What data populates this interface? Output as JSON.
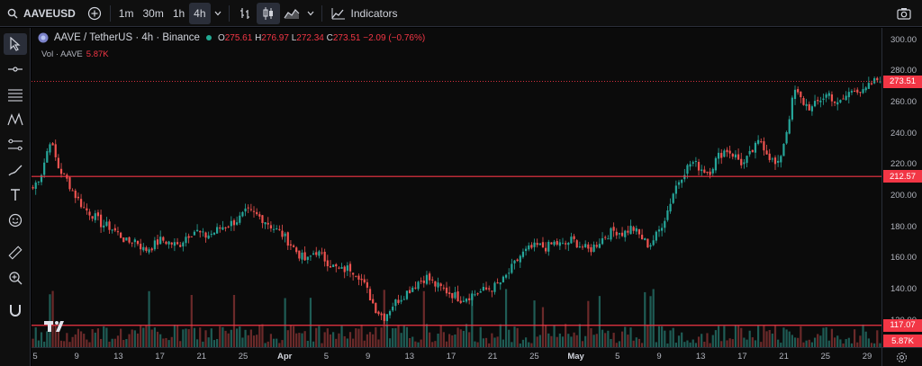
{
  "toolbar": {
    "symbol": "AAVEUSD",
    "timeframes": [
      "1m",
      "30m",
      "1h",
      "4h"
    ],
    "active_timeframe": "4h",
    "indicators_label": "Indicators"
  },
  "legend": {
    "title": "AAVE / TetherUS · 4h · Binance",
    "open_label": "O",
    "open": "275.61",
    "high_label": "H",
    "high": "276.97",
    "low_label": "L",
    "low": "272.34",
    "close_label": "C",
    "close": "273.51",
    "change": "−2.09 (−0.76%)",
    "vol_label": "Vol · AAVE",
    "vol_value": "5.87K"
  },
  "price_axis": {
    "ticks": [
      "300.00",
      "280.00",
      "260.00",
      "240.00",
      "220.00",
      "200.00",
      "180.00",
      "160.00",
      "140.00",
      "120.00"
    ],
    "current_price": "273.51",
    "line_upper": "212.57",
    "line_lower": "117.07",
    "volume_tag": "5.87K"
  },
  "time_axis": {
    "ticks": [
      "5",
      "9",
      "13",
      "17",
      "21",
      "25",
      "Apr",
      "5",
      "9",
      "13",
      "17",
      "21",
      "25",
      "May",
      "5",
      "9",
      "13",
      "17",
      "21",
      "25",
      "29"
    ]
  },
  "chart_data": {
    "type": "candlestick",
    "ylim": [
      110,
      305
    ],
    "horizontal_lines": [
      212.57,
      117.07
    ],
    "last_price": 273.51,
    "close_path": [
      [
        0,
        205
      ],
      [
        2,
        215
      ],
      [
        4,
        236
      ],
      [
        6,
        218
      ],
      [
        8,
        210
      ],
      [
        10,
        200
      ],
      [
        12,
        192
      ],
      [
        14,
        188
      ],
      [
        16,
        182
      ],
      [
        18,
        180
      ],
      [
        20,
        176
      ],
      [
        22,
        170
      ],
      [
        24,
        172
      ],
      [
        26,
        165
      ],
      [
        28,
        168
      ],
      [
        30,
        172
      ],
      [
        32,
        170
      ],
      [
        34,
        168
      ],
      [
        36,
        175
      ],
      [
        38,
        178
      ],
      [
        40,
        174
      ],
      [
        42,
        176
      ],
      [
        44,
        180
      ],
      [
        46,
        182
      ],
      [
        48,
        185
      ],
      [
        50,
        190
      ],
      [
        52,
        188
      ],
      [
        54,
        185
      ],
      [
        56,
        180
      ],
      [
        58,
        176
      ],
      [
        60,
        170
      ],
      [
        62,
        163
      ],
      [
        64,
        158
      ],
      [
        66,
        165
      ],
      [
        68,
        160
      ],
      [
        70,
        155
      ],
      [
        72,
        152
      ],
      [
        74,
        154
      ],
      [
        76,
        150
      ],
      [
        78,
        140
      ],
      [
        80,
        128
      ],
      [
        82,
        122
      ],
      [
        84,
        130
      ],
      [
        86,
        135
      ],
      [
        88,
        140
      ],
      [
        90,
        145
      ],
      [
        92,
        148
      ],
      [
        94,
        143
      ],
      [
        96,
        140
      ],
      [
        98,
        137
      ],
      [
        100,
        134
      ],
      [
        102,
        136
      ],
      [
        104,
        138
      ],
      [
        106,
        140
      ],
      [
        108,
        142
      ],
      [
        110,
        146
      ],
      [
        112,
        154
      ],
      [
        114,
        162
      ],
      [
        116,
        166
      ],
      [
        118,
        168
      ],
      [
        120,
        167
      ],
      [
        122,
        170
      ],
      [
        124,
        168
      ],
      [
        126,
        172
      ],
      [
        128,
        168
      ],
      [
        130,
        165
      ],
      [
        132,
        170
      ],
      [
        134,
        175
      ],
      [
        136,
        178
      ],
      [
        138,
        176
      ],
      [
        140,
        180
      ],
      [
        142,
        174
      ],
      [
        144,
        168
      ],
      [
        146,
        176
      ],
      [
        148,
        188
      ],
      [
        150,
        205
      ],
      [
        152,
        215
      ],
      [
        154,
        222
      ],
      [
        156,
        218
      ],
      [
        158,
        215
      ],
      [
        160,
        225
      ],
      [
        162,
        230
      ],
      [
        164,
        226
      ],
      [
        166,
        220
      ],
      [
        168,
        228
      ],
      [
        170,
        236
      ],
      [
        172,
        226
      ],
      [
        174,
        218
      ],
      [
        176,
        240
      ],
      [
        178,
        268
      ],
      [
        180,
        260
      ],
      [
        182,
        256
      ],
      [
        184,
        262
      ],
      [
        186,
        266
      ],
      [
        188,
        258
      ],
      [
        190,
        264
      ],
      [
        192,
        270
      ],
      [
        194,
        266
      ],
      [
        196,
        272
      ],
      [
        198,
        276
      ]
    ]
  }
}
